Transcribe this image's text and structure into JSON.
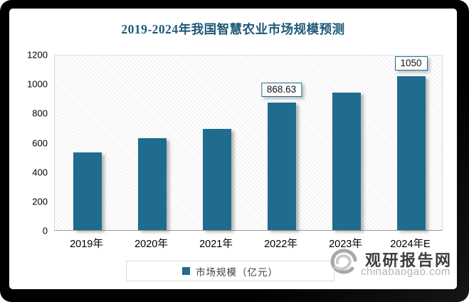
{
  "title": "2019-2024年我国智慧农业市场规模预测",
  "chart_data": {
    "type": "bar",
    "title": "2019-2024年我国智慧农业市场规模预测",
    "categories": [
      "2019年",
      "2020年",
      "2021年",
      "2022年",
      "2023年",
      "2024年E"
    ],
    "series": [
      {
        "name": "市场规模（亿元）",
        "values": [
          530,
          625,
          690,
          868.63,
          940,
          1050
        ]
      }
    ],
    "data_labels": [
      "",
      "",
      "",
      "868.63",
      "",
      "1050"
    ],
    "xlabel": "",
    "ylabel": "",
    "ylim": [
      0,
      1200
    ],
    "yticks": [
      0,
      200,
      400,
      600,
      800,
      1000,
      1200
    ],
    "grid": false,
    "legend_position": "bottom",
    "bar_color": "#1F6C8E",
    "plot_background": "diagonal-hatch"
  },
  "legend": {
    "label": "市场规模（亿元）",
    "swatch_color": "#1F6C8E"
  },
  "watermark": {
    "brand": "观研报告网",
    "domain": "chinabaogao.com"
  },
  "colors": {
    "title": "#1E5978",
    "bar": "#1F6C8E",
    "data_label_border": "#1F6C8E",
    "frame": "#000000",
    "axis_text": "#000000"
  }
}
